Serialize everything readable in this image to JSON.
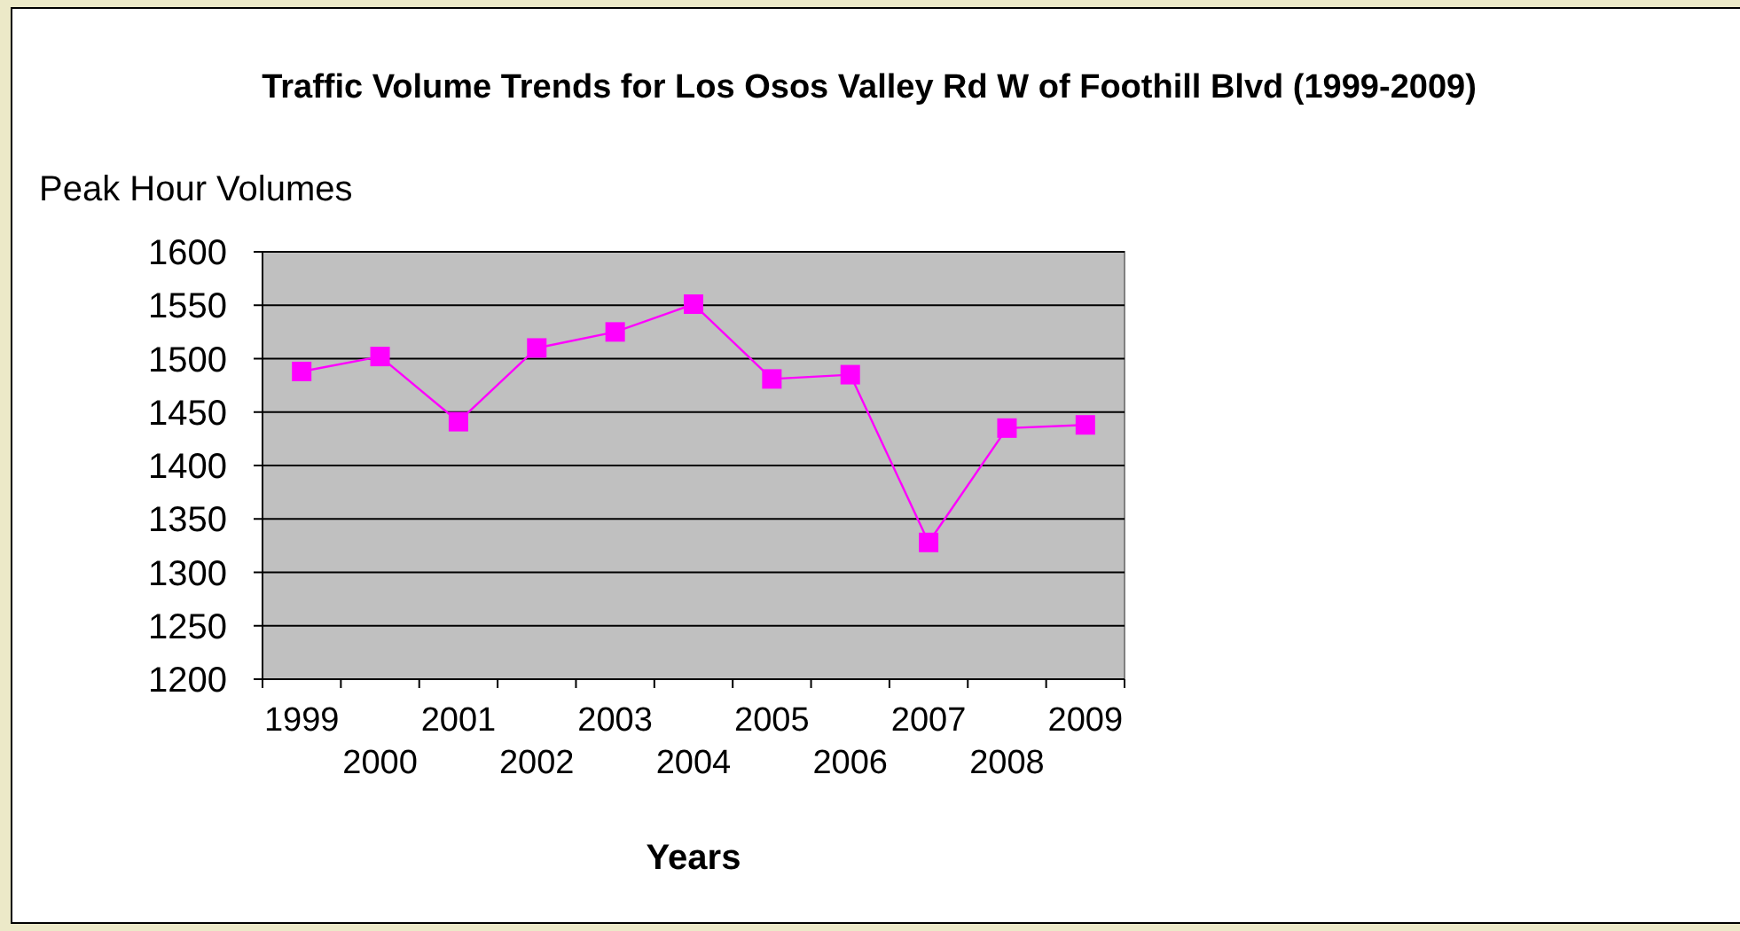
{
  "chart_data": {
    "type": "line",
    "title": "Traffic Volume Trends for Los Osos Valley Rd W of Foothill Blvd (1999-2009)",
    "xlabel": "Years",
    "ylabel": "Peak Hour Volumes",
    "categories": [
      "1999",
      "2000",
      "2001",
      "2002",
      "2003",
      "2004",
      "2005",
      "2006",
      "2007",
      "2008",
      "2009"
    ],
    "series": [
      {
        "color": "#ff00ff",
        "values": [
          1488,
          1502,
          1441,
          1510,
          1525,
          1551,
          1481,
          1485,
          1328,
          1435,
          1438
        ]
      }
    ],
    "ylim": [
      1200,
      1600
    ],
    "yticks": [
      1200,
      1250,
      1300,
      1350,
      1400,
      1450,
      1500,
      1550,
      1600
    ],
    "grid": "y",
    "marker": "square",
    "line_style": "solid"
  }
}
